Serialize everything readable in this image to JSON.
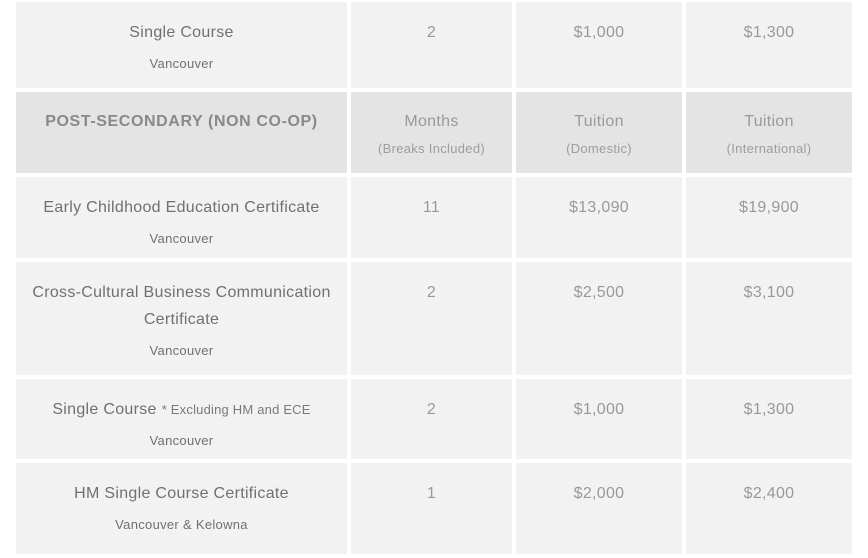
{
  "colors": {
    "row_background": "#f2f2f2",
    "header_background": "#e4e4e4",
    "text_primary": "#6e7073",
    "text_secondary": "#98999c"
  },
  "header": {
    "program_label": "POST-SECONDARY (NON CO-OP)",
    "columns": [
      {
        "label": "Months",
        "sub": "(Breaks Included)"
      },
      {
        "label": "Tuition",
        "sub": "(Domestic)"
      },
      {
        "label": "Tuition",
        "sub": "(International)"
      }
    ]
  },
  "rows": [
    {
      "title": "Single Course",
      "note": "",
      "location": "Vancouver",
      "months": "2",
      "tuition_domestic": "$1,000",
      "tuition_international": "$1,300"
    },
    {
      "title": "Early Childhood Education Certificate",
      "note": "",
      "location": "Vancouver",
      "months": "11",
      "tuition_domestic": "$13,090",
      "tuition_international": "$19,900"
    },
    {
      "title": "Cross-Cultural Business Communication Certificate",
      "note": "",
      "location": "Vancouver",
      "months": "2",
      "tuition_domestic": "$2,500",
      "tuition_international": "$3,100"
    },
    {
      "title": "Single Course",
      "note": "* Excluding HM and ECE",
      "location": "Vancouver",
      "months": "2",
      "tuition_domestic": "$1,000",
      "tuition_international": "$1,300"
    },
    {
      "title": "HM Single Course Certificate",
      "note": "",
      "location": "Vancouver & Kelowna",
      "months": "1",
      "tuition_domestic": "$2,000",
      "tuition_international": "$2,400"
    }
  ]
}
